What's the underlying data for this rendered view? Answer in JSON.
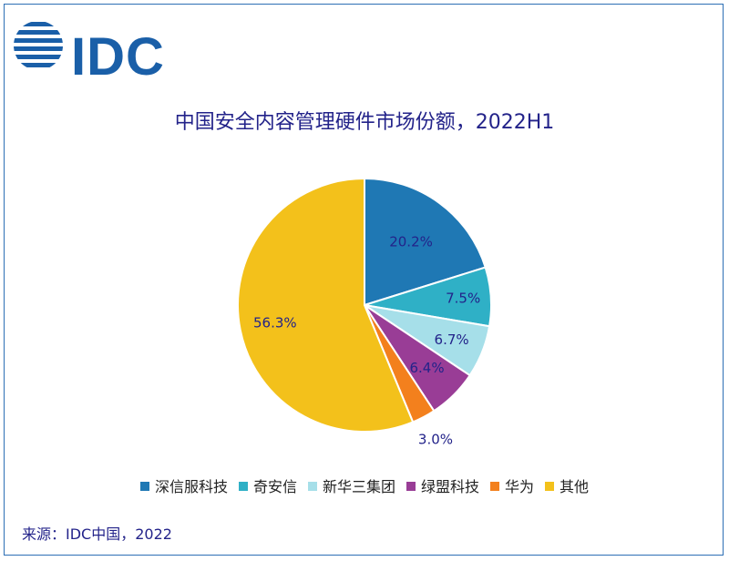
{
  "logo": {
    "text": "IDC",
    "color": "#1a5fa8"
  },
  "colors": {
    "frame": "#2d6fb5",
    "title": "#23238a",
    "label": "#23238a"
  },
  "chart_data": {
    "type": "pie",
    "title": "中国安全内容管理硬件市场份额，2022H1",
    "legend_position": "bottom",
    "slices": [
      {
        "label": "深信服科技",
        "value": 20.2,
        "display": "20.2%",
        "color": "#1f78b4"
      },
      {
        "label": "奇安信",
        "value": 7.5,
        "display": "7.5%",
        "color": "#2fb0c6"
      },
      {
        "label": "新华三集团",
        "value": 6.7,
        "display": "6.7%",
        "color": "#a6dfe9"
      },
      {
        "label": "绿盟科技",
        "value": 6.4,
        "display": "6.4%",
        "color": "#993d96"
      },
      {
        "label": "华为",
        "value": 3.0,
        "display": "3.0%",
        "color": "#f3801d"
      },
      {
        "label": "其他",
        "value": 56.3,
        "display": "56.3%",
        "color": "#f3c11b"
      }
    ]
  },
  "source": "来源：IDC中国，2022"
}
